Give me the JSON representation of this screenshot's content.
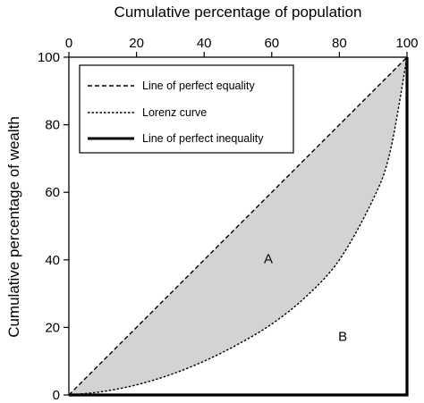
{
  "chart_data": {
    "type": "line",
    "xlabel": "Cumulative percentage of population",
    "ylabel": "Cumulative percentage of wealth",
    "xlim": [
      0,
      100
    ],
    "ylim": [
      0,
      100
    ],
    "x_ticks": [
      "0",
      "20",
      "40",
      "60",
      "80",
      "100"
    ],
    "y_ticks": [
      "0",
      "20",
      "40",
      "60",
      "80",
      "100"
    ],
    "x_axis_position": "top",
    "legend_position": "top-left",
    "shaded_area_color": "#d3d3d3",
    "series": [
      {
        "name": "Line of perfect equality",
        "style": "dashed",
        "x": [
          0,
          100
        ],
        "y": [
          0,
          100
        ]
      },
      {
        "name": "Lorenz curve",
        "style": "dotted",
        "x": [
          0,
          10,
          20,
          30,
          40,
          50,
          60,
          70,
          80,
          90,
          95,
          100
        ],
        "y": [
          0,
          1,
          3,
          6,
          10,
          15,
          21,
          29,
          40,
          58,
          72,
          100
        ]
      },
      {
        "name": "Line of perfect inequality",
        "style": "solid",
        "x": [
          0,
          100,
          100
        ],
        "y": [
          0,
          0,
          100
        ]
      }
    ],
    "annotations": [
      {
        "text": "A",
        "x": 59,
        "y": 39
      },
      {
        "text": "B",
        "x": 81,
        "y": 16
      }
    ]
  }
}
